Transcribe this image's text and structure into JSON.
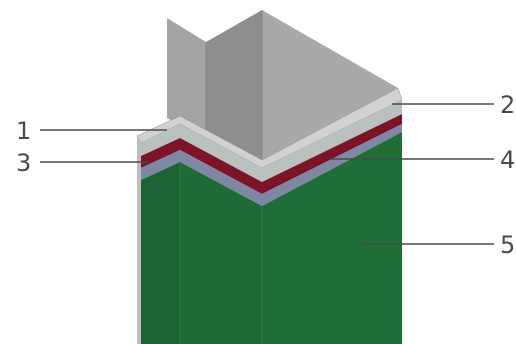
{
  "diagram": {
    "callouts": [
      {
        "id": "layer-1",
        "label": "1"
      },
      {
        "id": "layer-2",
        "label": "2"
      },
      {
        "id": "layer-3",
        "label": "3"
      },
      {
        "id": "layer-4",
        "label": "4"
      },
      {
        "id": "layer-5",
        "label": "5"
      }
    ],
    "colors": {
      "panel_light": "#a6a6a6",
      "panel_dark": "#8f8f8f",
      "panel_top": "#d0d0d0",
      "layer_grey": "#b9c4c1",
      "layer_red": "#7c1327",
      "layer_blue": "#7d87a6",
      "layer_green": "#1d6a35",
      "layer_green_dark": "#175a2c"
    }
  }
}
